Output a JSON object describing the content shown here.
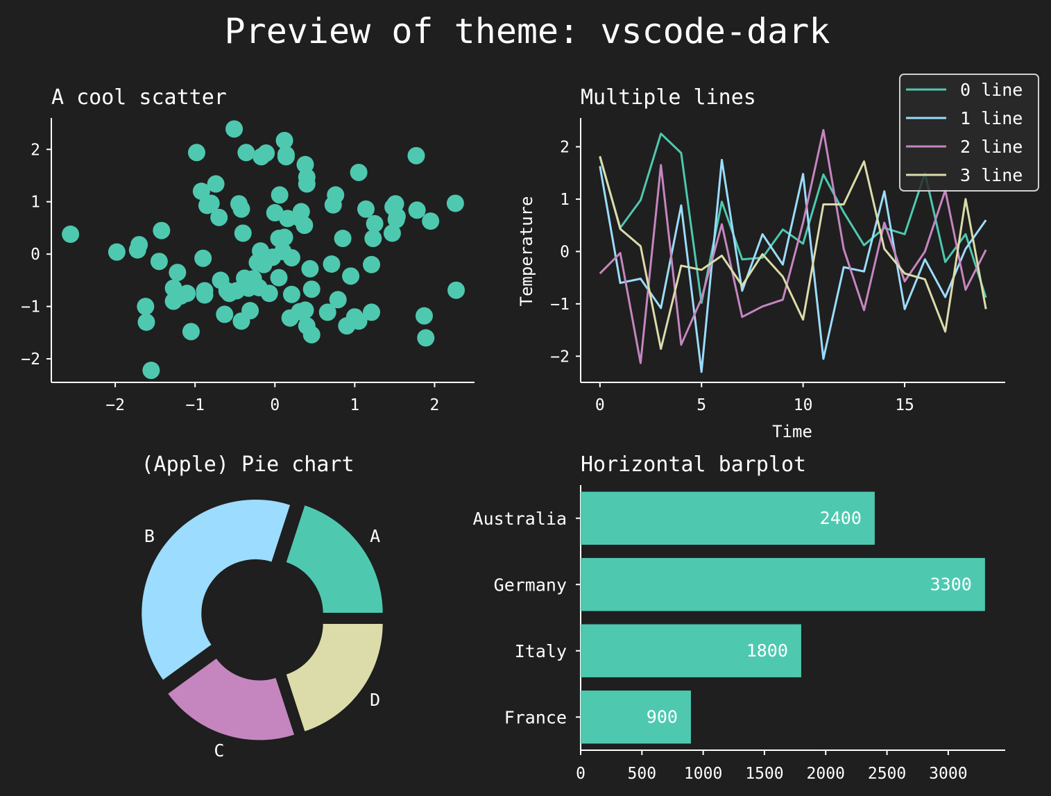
{
  "figure": {
    "title": "Preview of theme: vscode-dark",
    "background": "#1f1f1f",
    "text_color": "#ffffff"
  },
  "chart_data": [
    {
      "type": "scatter",
      "title": "A cool scatter",
      "xlabel": "",
      "ylabel": "",
      "xlim": [
        -2.8,
        2.5
      ],
      "ylim": [
        -2.45,
        2.6
      ],
      "xticks": [
        -2,
        -1,
        0,
        1,
        2
      ],
      "yticks": [
        -2,
        -1,
        0,
        1,
        2
      ],
      "color": "#4ec9b0",
      "points": [
        [
          -2.56,
          0.38
        ],
        [
          -1.98,
          0.04
        ],
        [
          -1.72,
          0.08
        ],
        [
          -1.7,
          0.18
        ],
        [
          -1.62,
          -1.0
        ],
        [
          -1.61,
          -1.3
        ],
        [
          -1.55,
          -2.22
        ],
        [
          -1.45,
          -0.14
        ],
        [
          -1.42,
          0.45
        ],
        [
          -1.22,
          -0.35
        ],
        [
          -1.27,
          -0.65
        ],
        [
          -1.27,
          -0.9
        ],
        [
          -1.18,
          -0.8
        ],
        [
          -1.1,
          -0.75
        ],
        [
          -1.05,
          -1.48
        ],
        [
          -0.98,
          1.94
        ],
        [
          -0.92,
          1.2
        ],
        [
          -0.9,
          -0.08
        ],
        [
          -0.88,
          -0.7
        ],
        [
          -0.88,
          -0.78
        ],
        [
          -0.85,
          0.93
        ],
        [
          -0.8,
          0.97
        ],
        [
          -0.74,
          1.34
        ],
        [
          -0.7,
          0.7
        ],
        [
          -0.68,
          -0.5
        ],
        [
          -0.63,
          -1.15
        ],
        [
          -0.6,
          -0.7
        ],
        [
          -0.57,
          -0.75
        ],
        [
          -0.51,
          2.39
        ],
        [
          -0.48,
          -0.7
        ],
        [
          -0.45,
          0.96
        ],
        [
          -0.42,
          0.86
        ],
        [
          -0.4,
          0.4
        ],
        [
          -0.42,
          -1.28
        ],
        [
          -0.38,
          -0.46
        ],
        [
          -0.36,
          1.94
        ],
        [
          -0.33,
          -0.65
        ],
        [
          -0.31,
          -1.08
        ],
        [
          -0.27,
          -0.47
        ],
        [
          -0.22,
          -0.16
        ],
        [
          -0.2,
          -0.64
        ],
        [
          -0.17,
          1.86
        ],
        [
          -0.18,
          0.06
        ],
        [
          -0.14,
          -0.2
        ],
        [
          -0.11,
          1.93
        ],
        [
          -0.07,
          -0.75
        ],
        [
          -0.03,
          -0.06
        ],
        [
          0.0,
          0.79
        ],
        [
          0.05,
          -0.45
        ],
        [
          0.05,
          0.3
        ],
        [
          0.06,
          1.13
        ],
        [
          0.1,
          0.05
        ],
        [
          0.12,
          0.32
        ],
        [
          0.12,
          2.17
        ],
        [
          0.14,
          1.9
        ],
        [
          0.14,
          1.86
        ],
        [
          0.16,
          0.68
        ],
        [
          0.19,
          -1.22
        ],
        [
          0.21,
          -0.77
        ],
        [
          0.21,
          -0.07
        ],
        [
          0.31,
          -1.1
        ],
        [
          0.31,
          0.69
        ],
        [
          0.33,
          0.81
        ],
        [
          0.37,
          0.55
        ],
        [
          0.38,
          1.71
        ],
        [
          0.38,
          -1.07
        ],
        [
          0.4,
          1.34
        ],
        [
          0.4,
          1.47
        ],
        [
          0.4,
          -1.37
        ],
        [
          0.44,
          -0.28
        ],
        [
          0.46,
          -1.54
        ],
        [
          0.46,
          -0.67
        ],
        [
          0.66,
          -1.11
        ],
        [
          0.71,
          -0.19
        ],
        [
          0.73,
          0.94
        ],
        [
          0.76,
          1.13
        ],
        [
          0.79,
          -0.87
        ],
        [
          0.85,
          0.3
        ],
        [
          0.9,
          -1.37
        ],
        [
          0.95,
          -0.42
        ],
        [
          1.0,
          -1.2
        ],
        [
          1.05,
          -1.28
        ],
        [
          1.05,
          1.56
        ],
        [
          1.14,
          0.86
        ],
        [
          1.21,
          -0.2
        ],
        [
          1.21,
          -1.11
        ],
        [
          1.23,
          0.3
        ],
        [
          1.25,
          0.58
        ],
        [
          1.47,
          0.4
        ],
        [
          1.48,
          0.9
        ],
        [
          1.51,
          0.96
        ],
        [
          1.52,
          0.66
        ],
        [
          1.53,
          0.72
        ],
        [
          1.77,
          1.88
        ],
        [
          1.78,
          0.84
        ],
        [
          1.87,
          -1.18
        ],
        [
          1.89,
          -1.6
        ],
        [
          1.95,
          0.63
        ],
        [
          2.26,
          0.97
        ],
        [
          2.27,
          -0.69
        ]
      ]
    },
    {
      "type": "line",
      "title": "Multiple lines",
      "xlabel": "Time",
      "ylabel": "Temperature",
      "xlim": [
        -0.95,
        19.95
      ],
      "ylim": [
        -2.5,
        2.55
      ],
      "xticks": [
        0,
        5,
        10,
        15
      ],
      "yticks": [
        -2,
        -1,
        0,
        1,
        2
      ],
      "legend_position": "top-right",
      "x": [
        0,
        1,
        2,
        3,
        4,
        5,
        6,
        7,
        8,
        9,
        10,
        11,
        12,
        13,
        14,
        15,
        16,
        17,
        18,
        19
      ],
      "series": [
        {
          "name": "0 line",
          "color": "#4ec9b0",
          "values": [
            1.8,
            0.45,
            0.98,
            2.25,
            1.88,
            -0.98,
            0.95,
            -0.15,
            -0.12,
            0.42,
            0.15,
            1.47,
            0.75,
            0.12,
            0.45,
            0.33,
            1.5,
            -0.2,
            0.33,
            -0.88
          ]
        },
        {
          "name": "1 line",
          "color": "#9cdcfe",
          "values": [
            1.63,
            -0.6,
            -0.52,
            -1.08,
            0.88,
            -2.3,
            1.75,
            -0.75,
            0.33,
            -0.25,
            1.48,
            -2.05,
            -0.3,
            -0.38,
            1.15,
            -1.1,
            -0.15,
            -0.87,
            0.05,
            0.6
          ]
        },
        {
          "name": "2 line",
          "color": "#c586c0",
          "values": [
            -0.42,
            -0.03,
            -2.13,
            1.65,
            -1.78,
            -0.9,
            0.52,
            -1.25,
            -1.05,
            -0.92,
            0.55,
            2.32,
            0.05,
            -1.12,
            0.55,
            -0.57,
            0.0,
            1.17,
            -0.73,
            0.03
          ]
        },
        {
          "name": "3 line",
          "color": "#dcdcaa",
          "values": [
            1.82,
            0.43,
            0.1,
            -1.86,
            -0.27,
            -0.35,
            -0.08,
            -0.65,
            -0.05,
            -0.48,
            -1.3,
            0.9,
            0.9,
            1.72,
            0.05,
            -0.42,
            -0.53,
            -1.53,
            1.0,
            -1.1
          ]
        }
      ]
    },
    {
      "type": "pie",
      "title": "(Apple) Pie chart",
      "labels": [
        "A",
        "B",
        "C",
        "D"
      ],
      "values": [
        20,
        40,
        20,
        20
      ],
      "colors": [
        "#4ec9b0",
        "#9cdcfe",
        "#c586c0",
        "#dcdcaa"
      ],
      "donut": true
    },
    {
      "type": "bar",
      "orientation": "horizontal",
      "title": "Horizontal barplot",
      "categories": [
        "Australia",
        "Germany",
        "Italy",
        "France"
      ],
      "values": [
        2400,
        3300,
        1800,
        900
      ],
      "data_labels": [
        "2400",
        "3300",
        "1800",
        "900"
      ],
      "color": "#4ec9b0",
      "xlim": [
        0,
        3465
      ],
      "xticks": [
        0,
        500,
        1000,
        1500,
        2000,
        2500,
        3000
      ]
    }
  ]
}
